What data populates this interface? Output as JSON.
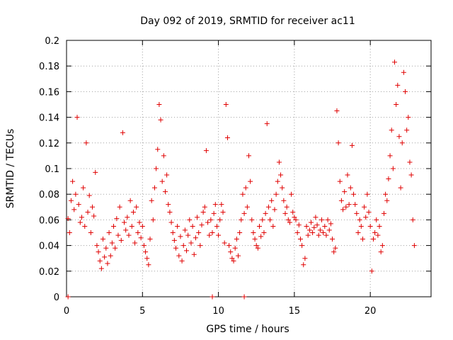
{
  "chart_data": {
    "type": "scatter",
    "title": "Day 092 of 2019, SRMTID for receiver ac11",
    "xlabel": "GPS time / hours",
    "ylabel": "SRMTID / TECUs",
    "xlim": [
      0,
      24
    ],
    "ylim": [
      0,
      0.2
    ],
    "xticks": [
      0,
      5,
      10,
      15,
      20
    ],
    "xtick_labels": [
      "0",
      "5",
      "10",
      "15",
      "20"
    ],
    "yticks": [
      0,
      0.02,
      0.04,
      0.06,
      0.08,
      0.1,
      0.12,
      0.14,
      0.16,
      0.18,
      0.2
    ],
    "ytick_labels": [
      "0",
      "0.02",
      "0.04",
      "0.06",
      "0.08",
      "0.1",
      "0.12",
      "0.14",
      "0.16",
      "0.18",
      "0.2"
    ],
    "grid": true,
    "series": [
      {
        "name": "SRMTID",
        "color": "#e00000",
        "marker": "plus",
        "points": [
          [
            0.1,
            0
          ],
          [
            9.6,
            0
          ],
          [
            11.7,
            0
          ],
          [
            0.1,
            0.061
          ],
          [
            0.2,
            0.05
          ],
          [
            0.3,
            0.075
          ],
          [
            0.4,
            0.09
          ],
          [
            0.5,
            0.068
          ],
          [
            0.6,
            0.08
          ],
          [
            0.7,
            0.14
          ],
          [
            0.8,
            0.072
          ],
          [
            0.9,
            0.058
          ],
          [
            1.0,
            0.062
          ],
          [
            1.1,
            0.085
          ],
          [
            1.2,
            0.055
          ],
          [
            1.3,
            0.12
          ],
          [
            1.4,
            0.066
          ],
          [
            1.5,
            0.079
          ],
          [
            1.6,
            0.05
          ],
          [
            1.7,
            0.07
          ],
          [
            1.8,
            0.063
          ],
          [
            1.9,
            0.097
          ],
          [
            2.0,
            0.04
          ],
          [
            2.1,
            0.035
          ],
          [
            2.2,
            0.028
          ],
          [
            2.3,
            0.022
          ],
          [
            2.4,
            0.045
          ],
          [
            2.5,
            0.031
          ],
          [
            2.6,
            0.038
          ],
          [
            2.7,
            0.026
          ],
          [
            2.8,
            0.05
          ],
          [
            2.9,
            0.032
          ],
          [
            3.0,
            0.042
          ],
          [
            3.1,
            0.055
          ],
          [
            3.2,
            0.038
          ],
          [
            3.3,
            0.061
          ],
          [
            3.4,
            0.048
          ],
          [
            3.5,
            0.07
          ],
          [
            3.6,
            0.044
          ],
          [
            3.7,
            0.128
          ],
          [
            3.8,
            0.058
          ],
          [
            3.9,
            0.052
          ],
          [
            4.0,
            0.062
          ],
          [
            4.1,
            0.048
          ],
          [
            4.2,
            0.075
          ],
          [
            4.3,
            0.055
          ],
          [
            4.4,
            0.066
          ],
          [
            4.5,
            0.042
          ],
          [
            4.6,
            0.07
          ],
          [
            4.7,
            0.05
          ],
          [
            4.8,
            0.058
          ],
          [
            4.9,
            0.046
          ],
          [
            5.0,
            0.055
          ],
          [
            5.1,
            0.04
          ],
          [
            5.2,
            0.035
          ],
          [
            5.3,
            0.03
          ],
          [
            5.4,
            0.025
          ],
          [
            5.5,
            0.045
          ],
          [
            5.6,
            0.075
          ],
          [
            5.7,
            0.06
          ],
          [
            5.8,
            0.085
          ],
          [
            5.9,
            0.1
          ],
          [
            6.0,
            0.115
          ],
          [
            6.1,
            0.15
          ],
          [
            6.2,
            0.138
          ],
          [
            6.3,
            0.09
          ],
          [
            6.4,
            0.11
          ],
          [
            6.5,
            0.082
          ],
          [
            6.6,
            0.095
          ],
          [
            6.7,
            0.072
          ],
          [
            6.8,
            0.066
          ],
          [
            6.9,
            0.058
          ],
          [
            7.0,
            0.05
          ],
          [
            7.1,
            0.044
          ],
          [
            7.2,
            0.038
          ],
          [
            7.3,
            0.055
          ],
          [
            7.4,
            0.032
          ],
          [
            7.5,
            0.047
          ],
          [
            7.6,
            0.028
          ],
          [
            7.7,
            0.04
          ],
          [
            7.8,
            0.052
          ],
          [
            7.9,
            0.036
          ],
          [
            8.0,
            0.048
          ],
          [
            8.1,
            0.06
          ],
          [
            8.2,
            0.042
          ],
          [
            8.3,
            0.055
          ],
          [
            8.4,
            0.033
          ],
          [
            8.5,
            0.046
          ],
          [
            8.6,
            0.062
          ],
          [
            8.7,
            0.05
          ],
          [
            8.8,
            0.04
          ],
          [
            8.9,
            0.056
          ],
          [
            9.0,
            0.066
          ],
          [
            9.1,
            0.07
          ],
          [
            9.2,
            0.114
          ],
          [
            9.3,
            0.058
          ],
          [
            9.4,
            0.048
          ],
          [
            9.5,
            0.06
          ],
          [
            9.6,
            0.05
          ],
          [
            9.7,
            0.065
          ],
          [
            9.8,
            0.072
          ],
          [
            9.9,
            0.055
          ],
          [
            10.0,
            0.048
          ],
          [
            10.1,
            0.06
          ],
          [
            10.2,
            0.072
          ],
          [
            10.3,
            0.066
          ],
          [
            10.4,
            0.042
          ],
          [
            10.5,
            0.15
          ],
          [
            10.6,
            0.124
          ],
          [
            10.7,
            0.04
          ],
          [
            10.8,
            0.035
          ],
          [
            10.9,
            0.03
          ],
          [
            11.0,
            0.028
          ],
          [
            11.1,
            0.038
          ],
          [
            11.2,
            0.045
          ],
          [
            11.3,
            0.032
          ],
          [
            11.4,
            0.05
          ],
          [
            11.5,
            0.06
          ],
          [
            11.6,
            0.08
          ],
          [
            11.7,
            0.065
          ],
          [
            11.8,
            0.085
          ],
          [
            11.9,
            0.07
          ],
          [
            12.0,
            0.11
          ],
          [
            12.1,
            0.09
          ],
          [
            12.2,
            0.06
          ],
          [
            12.3,
            0.05
          ],
          [
            12.4,
            0.045
          ],
          [
            12.5,
            0.04
          ],
          [
            12.6,
            0.038
          ],
          [
            12.7,
            0.055
          ],
          [
            12.8,
            0.047
          ],
          [
            12.9,
            0.06
          ],
          [
            13.0,
            0.05
          ],
          [
            13.1,
            0.065
          ],
          [
            13.2,
            0.135
          ],
          [
            13.3,
            0.07
          ],
          [
            13.4,
            0.06
          ],
          [
            13.5,
            0.075
          ],
          [
            13.6,
            0.055
          ],
          [
            13.7,
            0.068
          ],
          [
            13.8,
            0.08
          ],
          [
            13.9,
            0.09
          ],
          [
            14.0,
            0.105
          ],
          [
            14.1,
            0.095
          ],
          [
            14.2,
            0.085
          ],
          [
            14.3,
            0.075
          ],
          [
            14.4,
            0.065
          ],
          [
            14.5,
            0.07
          ],
          [
            14.6,
            0.06
          ],
          [
            14.7,
            0.058
          ],
          [
            14.8,
            0.08
          ],
          [
            14.9,
            0.066
          ],
          [
            15.0,
            0.062
          ],
          [
            15.1,
            0.06
          ],
          [
            15.2,
            0.05
          ],
          [
            15.3,
            0.056
          ],
          [
            15.4,
            0.045
          ],
          [
            15.5,
            0.04
          ],
          [
            15.6,
            0.025
          ],
          [
            15.7,
            0.03
          ],
          [
            15.8,
            0.055
          ],
          [
            15.9,
            0.048
          ],
          [
            16.0,
            0.052
          ],
          [
            16.1,
            0.058
          ],
          [
            16.2,
            0.05
          ],
          [
            16.3,
            0.054
          ],
          [
            16.4,
            0.062
          ],
          [
            16.5,
            0.056
          ],
          [
            16.6,
            0.048
          ],
          [
            16.7,
            0.052
          ],
          [
            16.8,
            0.06
          ],
          [
            16.9,
            0.05
          ],
          [
            17.0,
            0.055
          ],
          [
            17.1,
            0.048
          ],
          [
            17.2,
            0.06
          ],
          [
            17.3,
            0.052
          ],
          [
            17.4,
            0.057
          ],
          [
            17.5,
            0.045
          ],
          [
            17.6,
            0.035
          ],
          [
            17.7,
            0.038
          ],
          [
            17.8,
            0.145
          ],
          [
            17.9,
            0.12
          ],
          [
            18.0,
            0.09
          ],
          [
            18.1,
            0.075
          ],
          [
            18.2,
            0.068
          ],
          [
            18.3,
            0.082
          ],
          [
            18.4,
            0.07
          ],
          [
            18.5,
            0.095
          ],
          [
            18.6,
            0.072
          ],
          [
            18.7,
            0.085
          ],
          [
            18.8,
            0.118
          ],
          [
            18.9,
            0.08
          ],
          [
            19.0,
            0.072
          ],
          [
            19.1,
            0.065
          ],
          [
            19.2,
            0.05
          ],
          [
            19.3,
            0.06
          ],
          [
            19.4,
            0.055
          ],
          [
            19.5,
            0.045
          ],
          [
            19.6,
            0.07
          ],
          [
            19.7,
            0.062
          ],
          [
            19.8,
            0.08
          ],
          [
            19.9,
            0.066
          ],
          [
            20.0,
            0.055
          ],
          [
            20.1,
            0.02
          ],
          [
            20.2,
            0.045
          ],
          [
            20.3,
            0.05
          ],
          [
            20.4,
            0.06
          ],
          [
            20.5,
            0.048
          ],
          [
            20.6,
            0.055
          ],
          [
            20.7,
            0.035
          ],
          [
            20.8,
            0.04
          ],
          [
            20.9,
            0.065
          ],
          [
            21.0,
            0.08
          ],
          [
            21.1,
            0.075
          ],
          [
            21.2,
            0.092
          ],
          [
            21.3,
            0.11
          ],
          [
            21.4,
            0.13
          ],
          [
            21.5,
            0.1
          ],
          [
            21.6,
            0.183
          ],
          [
            21.7,
            0.15
          ],
          [
            21.8,
            0.165
          ],
          [
            21.9,
            0.125
          ],
          [
            22.0,
            0.085
          ],
          [
            22.1,
            0.12
          ],
          [
            22.2,
            0.175
          ],
          [
            22.3,
            0.16
          ],
          [
            22.4,
            0.13
          ],
          [
            22.5,
            0.14
          ],
          [
            22.6,
            0.105
          ],
          [
            22.7,
            0.095
          ],
          [
            22.8,
            0.06
          ],
          [
            22.9,
            0.04
          ]
        ]
      }
    ]
  }
}
